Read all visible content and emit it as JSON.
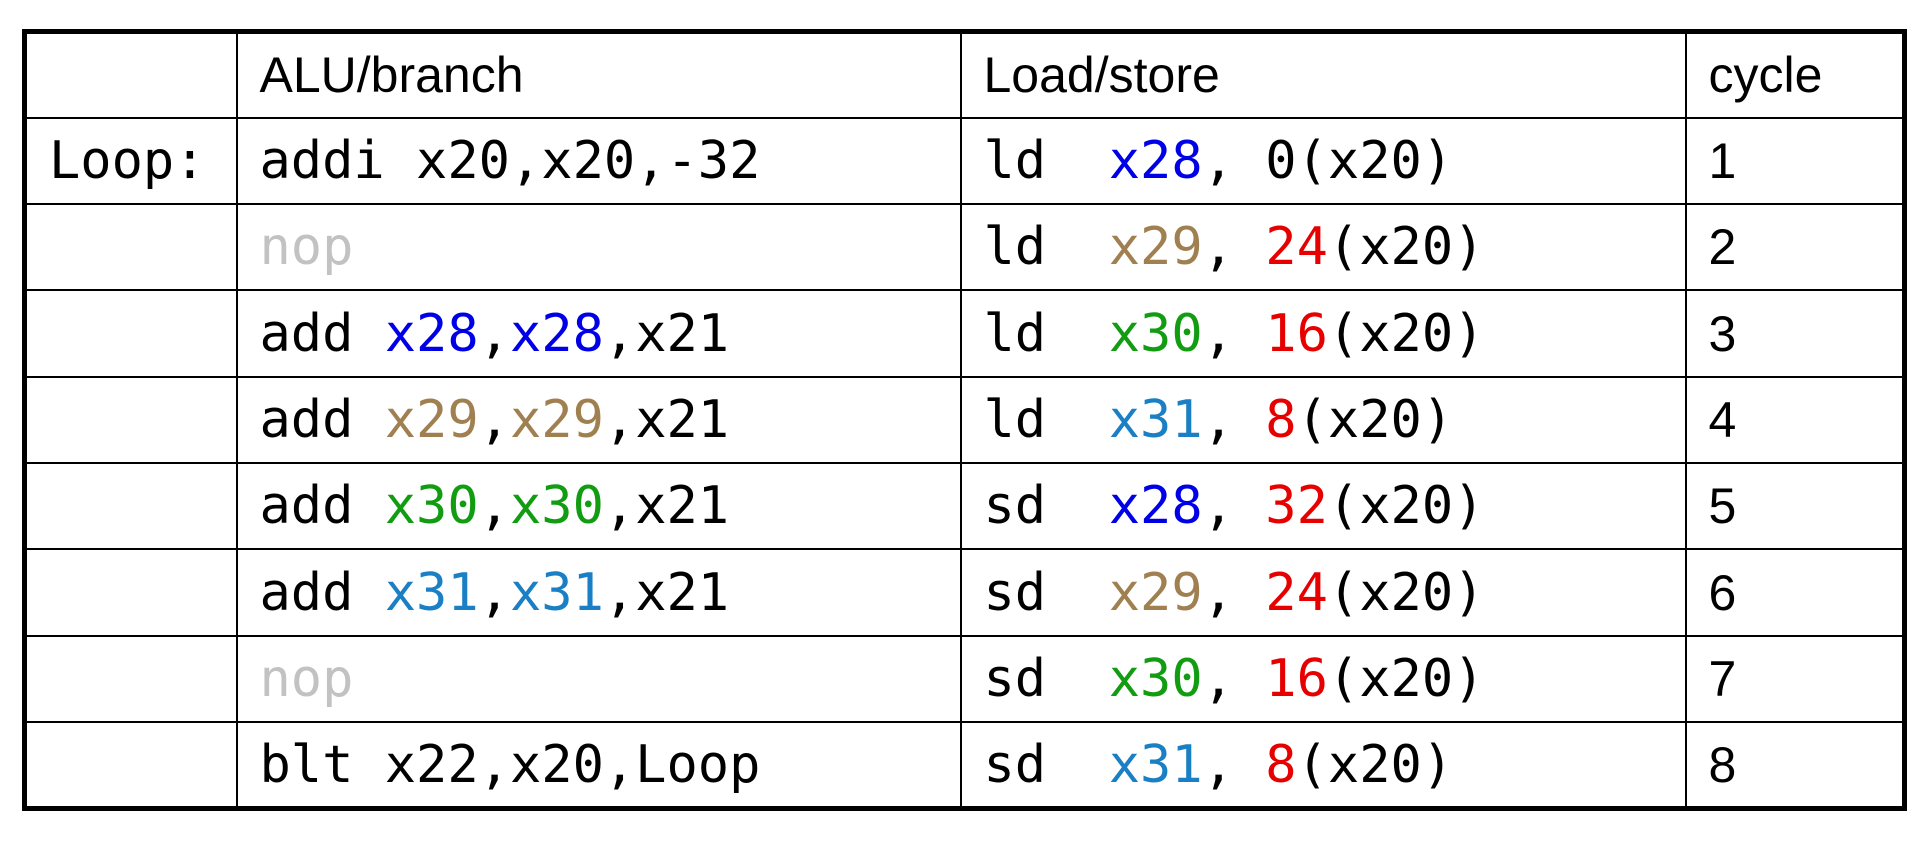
{
  "header": {
    "label": "",
    "alu": "ALU/branch",
    "loadstore": "Load/store",
    "cycle": "cycle"
  },
  "colors": {
    "x28": "#0000e6",
    "x29": "#a08050",
    "x30": "#119c11",
    "x31": "#1a7fc4",
    "offset": "#e60000",
    "nop": "#c2c2c2",
    "plain": "#000000"
  },
  "rows": [
    {
      "label": "Loop:",
      "alu": [
        {
          "t": "addi x20,x20,-32",
          "c": "plain"
        }
      ],
      "ls": [
        {
          "t": "ld  ",
          "c": "plain"
        },
        {
          "t": "x28",
          "c": "x28"
        },
        {
          "t": ", 0(x20)",
          "c": "plain"
        }
      ],
      "cycle": "1"
    },
    {
      "label": "",
      "alu": [
        {
          "t": "nop",
          "c": "nop"
        }
      ],
      "ls": [
        {
          "t": "ld  ",
          "c": "plain"
        },
        {
          "t": "x29",
          "c": "x29"
        },
        {
          "t": ", ",
          "c": "plain"
        },
        {
          "t": "24",
          "c": "offset"
        },
        {
          "t": "(x20)",
          "c": "plain"
        }
      ],
      "cycle": "2"
    },
    {
      "label": "",
      "alu": [
        {
          "t": "add ",
          "c": "plain"
        },
        {
          "t": "x28",
          "c": "x28"
        },
        {
          "t": ",",
          "c": "plain"
        },
        {
          "t": "x28",
          "c": "x28"
        },
        {
          "t": ",x21",
          "c": "plain"
        }
      ],
      "ls": [
        {
          "t": "ld  ",
          "c": "plain"
        },
        {
          "t": "x30",
          "c": "x30"
        },
        {
          "t": ", ",
          "c": "plain"
        },
        {
          "t": "16",
          "c": "offset"
        },
        {
          "t": "(x20)",
          "c": "plain"
        }
      ],
      "cycle": "3"
    },
    {
      "label": "",
      "alu": [
        {
          "t": "add ",
          "c": "plain"
        },
        {
          "t": "x29",
          "c": "x29"
        },
        {
          "t": ",",
          "c": "plain"
        },
        {
          "t": "x29",
          "c": "x29"
        },
        {
          "t": ",x21",
          "c": "plain"
        }
      ],
      "ls": [
        {
          "t": "ld  ",
          "c": "plain"
        },
        {
          "t": "x31",
          "c": "x31"
        },
        {
          "t": ", ",
          "c": "plain"
        },
        {
          "t": "8",
          "c": "offset"
        },
        {
          "t": "(x20)",
          "c": "plain"
        }
      ],
      "cycle": "4"
    },
    {
      "label": "",
      "alu": [
        {
          "t": "add ",
          "c": "plain"
        },
        {
          "t": "x30",
          "c": "x30"
        },
        {
          "t": ",",
          "c": "plain"
        },
        {
          "t": "x30",
          "c": "x30"
        },
        {
          "t": ",x21",
          "c": "plain"
        }
      ],
      "ls": [
        {
          "t": "sd  ",
          "c": "plain"
        },
        {
          "t": "x28",
          "c": "x28"
        },
        {
          "t": ", ",
          "c": "plain"
        },
        {
          "t": "32",
          "c": "offset"
        },
        {
          "t": "(x20)",
          "c": "plain"
        }
      ],
      "cycle": "5"
    },
    {
      "label": "",
      "alu": [
        {
          "t": "add ",
          "c": "plain"
        },
        {
          "t": "x31",
          "c": "x31"
        },
        {
          "t": ",",
          "c": "plain"
        },
        {
          "t": "x31",
          "c": "x31"
        },
        {
          "t": ",x21",
          "c": "plain"
        }
      ],
      "ls": [
        {
          "t": "sd  ",
          "c": "plain"
        },
        {
          "t": "x29",
          "c": "x29"
        },
        {
          "t": ", ",
          "c": "plain"
        },
        {
          "t": "24",
          "c": "offset"
        },
        {
          "t": "(x20)",
          "c": "plain"
        }
      ],
      "cycle": "6"
    },
    {
      "label": "",
      "alu": [
        {
          "t": "nop",
          "c": "nop"
        }
      ],
      "ls": [
        {
          "t": "sd  ",
          "c": "plain"
        },
        {
          "t": "x30",
          "c": "x30"
        },
        {
          "t": ", ",
          "c": "plain"
        },
        {
          "t": "16",
          "c": "offset"
        },
        {
          "t": "(x20)",
          "c": "plain"
        }
      ],
      "cycle": "7"
    },
    {
      "label": "",
      "alu": [
        {
          "t": "blt x22,x20,Loop",
          "c": "plain"
        }
      ],
      "ls": [
        {
          "t": "sd  ",
          "c": "plain"
        },
        {
          "t": "x31",
          "c": "x31"
        },
        {
          "t": ", ",
          "c": "plain"
        },
        {
          "t": "8",
          "c": "offset"
        },
        {
          "t": "(x20)",
          "c": "plain"
        }
      ],
      "cycle": "8"
    }
  ]
}
